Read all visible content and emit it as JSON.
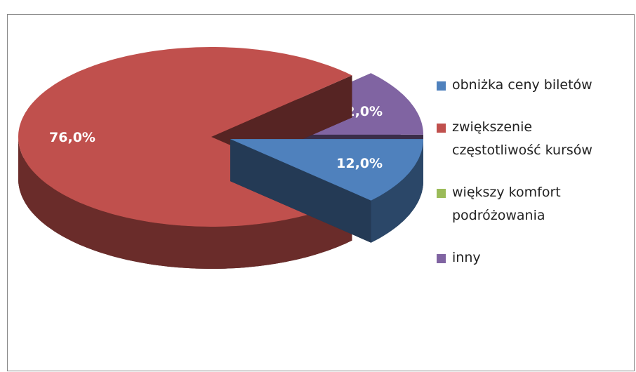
{
  "chart_data": {
    "type": "pie3d",
    "categories": [
      "obniżka ceny biletów",
      "zwiększenie częstotliwość kursów",
      "większy komfort podróżowania",
      "inny"
    ],
    "values": [
      12,
      76,
      0,
      12
    ],
    "value_labels": [
      "12,0%",
      "76,0%",
      null,
      "12,0%"
    ],
    "colors": [
      "#4f81bd",
      "#c0504d",
      "#9bbb59",
      "#8064a2"
    ],
    "legend": "right"
  }
}
